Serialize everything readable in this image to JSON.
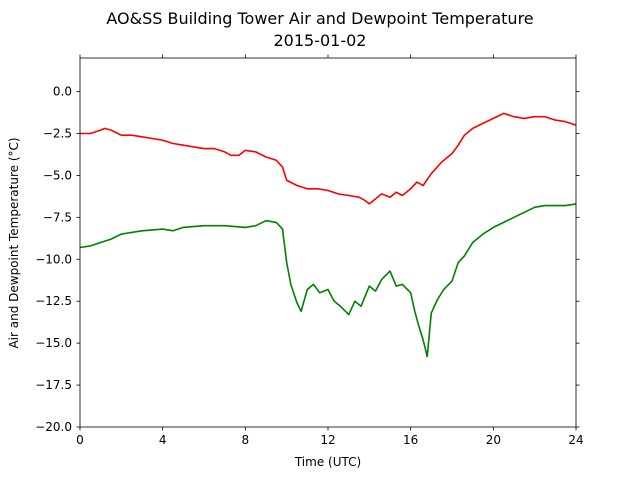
{
  "chart_data": {
    "type": "line",
    "title": "AO&SS Building Tower Air and Dewpoint Temperature",
    "subtitle": "2015-01-02",
    "xlabel": "Time (UTC)",
    "ylabel": "Air and Dewpoint Temperature (°C)",
    "xlim": [
      0,
      24
    ],
    "ylim": [
      -20,
      2
    ],
    "xticks": [
      0,
      4,
      8,
      12,
      16,
      20,
      24
    ],
    "xtick_labels": [
      "0",
      "4",
      "8",
      "12",
      "16",
      "20",
      "24"
    ],
    "yticks": [
      0.0,
      -2.5,
      -5.0,
      -7.5,
      -10.0,
      -12.5,
      -15.0,
      -17.5,
      -20.0
    ],
    "ytick_labels": [
      "0.0",
      "−2.5",
      "−5.0",
      "−7.5",
      "−10.0",
      "−12.5",
      "−15.0",
      "−17.5",
      "−20.0"
    ],
    "grid": false,
    "series": [
      {
        "color": "#ff0000",
        "x": [
          0,
          0.5,
          1.0,
          1.2,
          1.5,
          2.0,
          2.5,
          3.0,
          3.5,
          4.0,
          4.5,
          5.0,
          5.5,
          6.0,
          6.5,
          7.0,
          7.3,
          7.7,
          8.0,
          8.5,
          9.0,
          9.5,
          9.8,
          10.0,
          10.5,
          11.0,
          11.5,
          12.0,
          12.5,
          13.0,
          13.5,
          13.8,
          14.0,
          14.3,
          14.6,
          15.0,
          15.3,
          15.6,
          16.0,
          16.3,
          16.6,
          17.0,
          17.5,
          18.0,
          18.3,
          18.6,
          19.0,
          19.5,
          20.0,
          20.5,
          21.0,
          21.5,
          22.0,
          22.5,
          23.0,
          23.5,
          24.0
        ],
        "y": [
          -2.5,
          -2.5,
          -2.3,
          -2.2,
          -2.3,
          -2.6,
          -2.6,
          -2.7,
          -2.8,
          -2.9,
          -3.1,
          -3.2,
          -3.3,
          -3.4,
          -3.4,
          -3.6,
          -3.8,
          -3.8,
          -3.5,
          -3.6,
          -3.9,
          -4.1,
          -4.5,
          -5.3,
          -5.6,
          -5.8,
          -5.8,
          -5.9,
          -6.1,
          -6.2,
          -6.3,
          -6.5,
          -6.7,
          -6.4,
          -6.1,
          -6.3,
          -6.0,
          -6.2,
          -5.8,
          -5.4,
          -5.6,
          -4.9,
          -4.2,
          -3.7,
          -3.2,
          -2.6,
          -2.2,
          -1.9,
          -1.6,
          -1.3,
          -1.5,
          -1.6,
          -1.5,
          -1.5,
          -1.7,
          -1.8,
          -2.0
        ]
      },
      {
        "color": "#008000",
        "x": [
          0,
          0.5,
          1.0,
          1.5,
          2.0,
          3.0,
          4.0,
          4.5,
          5.0,
          6.0,
          7.0,
          8.0,
          8.5,
          9.0,
          9.5,
          9.8,
          10.0,
          10.2,
          10.5,
          10.7,
          11.0,
          11.3,
          11.6,
          12.0,
          12.3,
          12.6,
          13.0,
          13.3,
          13.6,
          14.0,
          14.3,
          14.6,
          15.0,
          15.3,
          15.6,
          16.0,
          16.2,
          16.4,
          16.6,
          16.8,
          17.0,
          17.3,
          17.6,
          18.0,
          18.3,
          18.6,
          19.0,
          19.5,
          20.0,
          20.5,
          21.0,
          21.5,
          22.0,
          22.5,
          23.0,
          23.5,
          24.0
        ],
        "y": [
          -9.3,
          -9.2,
          -9.0,
          -8.8,
          -8.5,
          -8.3,
          -8.2,
          -8.3,
          -8.1,
          -8.0,
          -8.0,
          -8.1,
          -8.0,
          -7.7,
          -7.8,
          -8.2,
          -10.2,
          -11.5,
          -12.6,
          -13.1,
          -11.8,
          -11.5,
          -12.0,
          -11.8,
          -12.5,
          -12.8,
          -13.3,
          -12.5,
          -12.8,
          -11.6,
          -11.9,
          -11.2,
          -10.7,
          -11.6,
          -11.5,
          -12.0,
          -13.1,
          -14.0,
          -14.8,
          -15.8,
          -13.2,
          -12.4,
          -11.8,
          -11.3,
          -10.2,
          -9.8,
          -9.0,
          -8.5,
          -8.1,
          -7.8,
          -7.5,
          -7.2,
          -6.9,
          -6.8,
          -6.8,
          -6.8,
          -6.7
        ]
      }
    ]
  }
}
